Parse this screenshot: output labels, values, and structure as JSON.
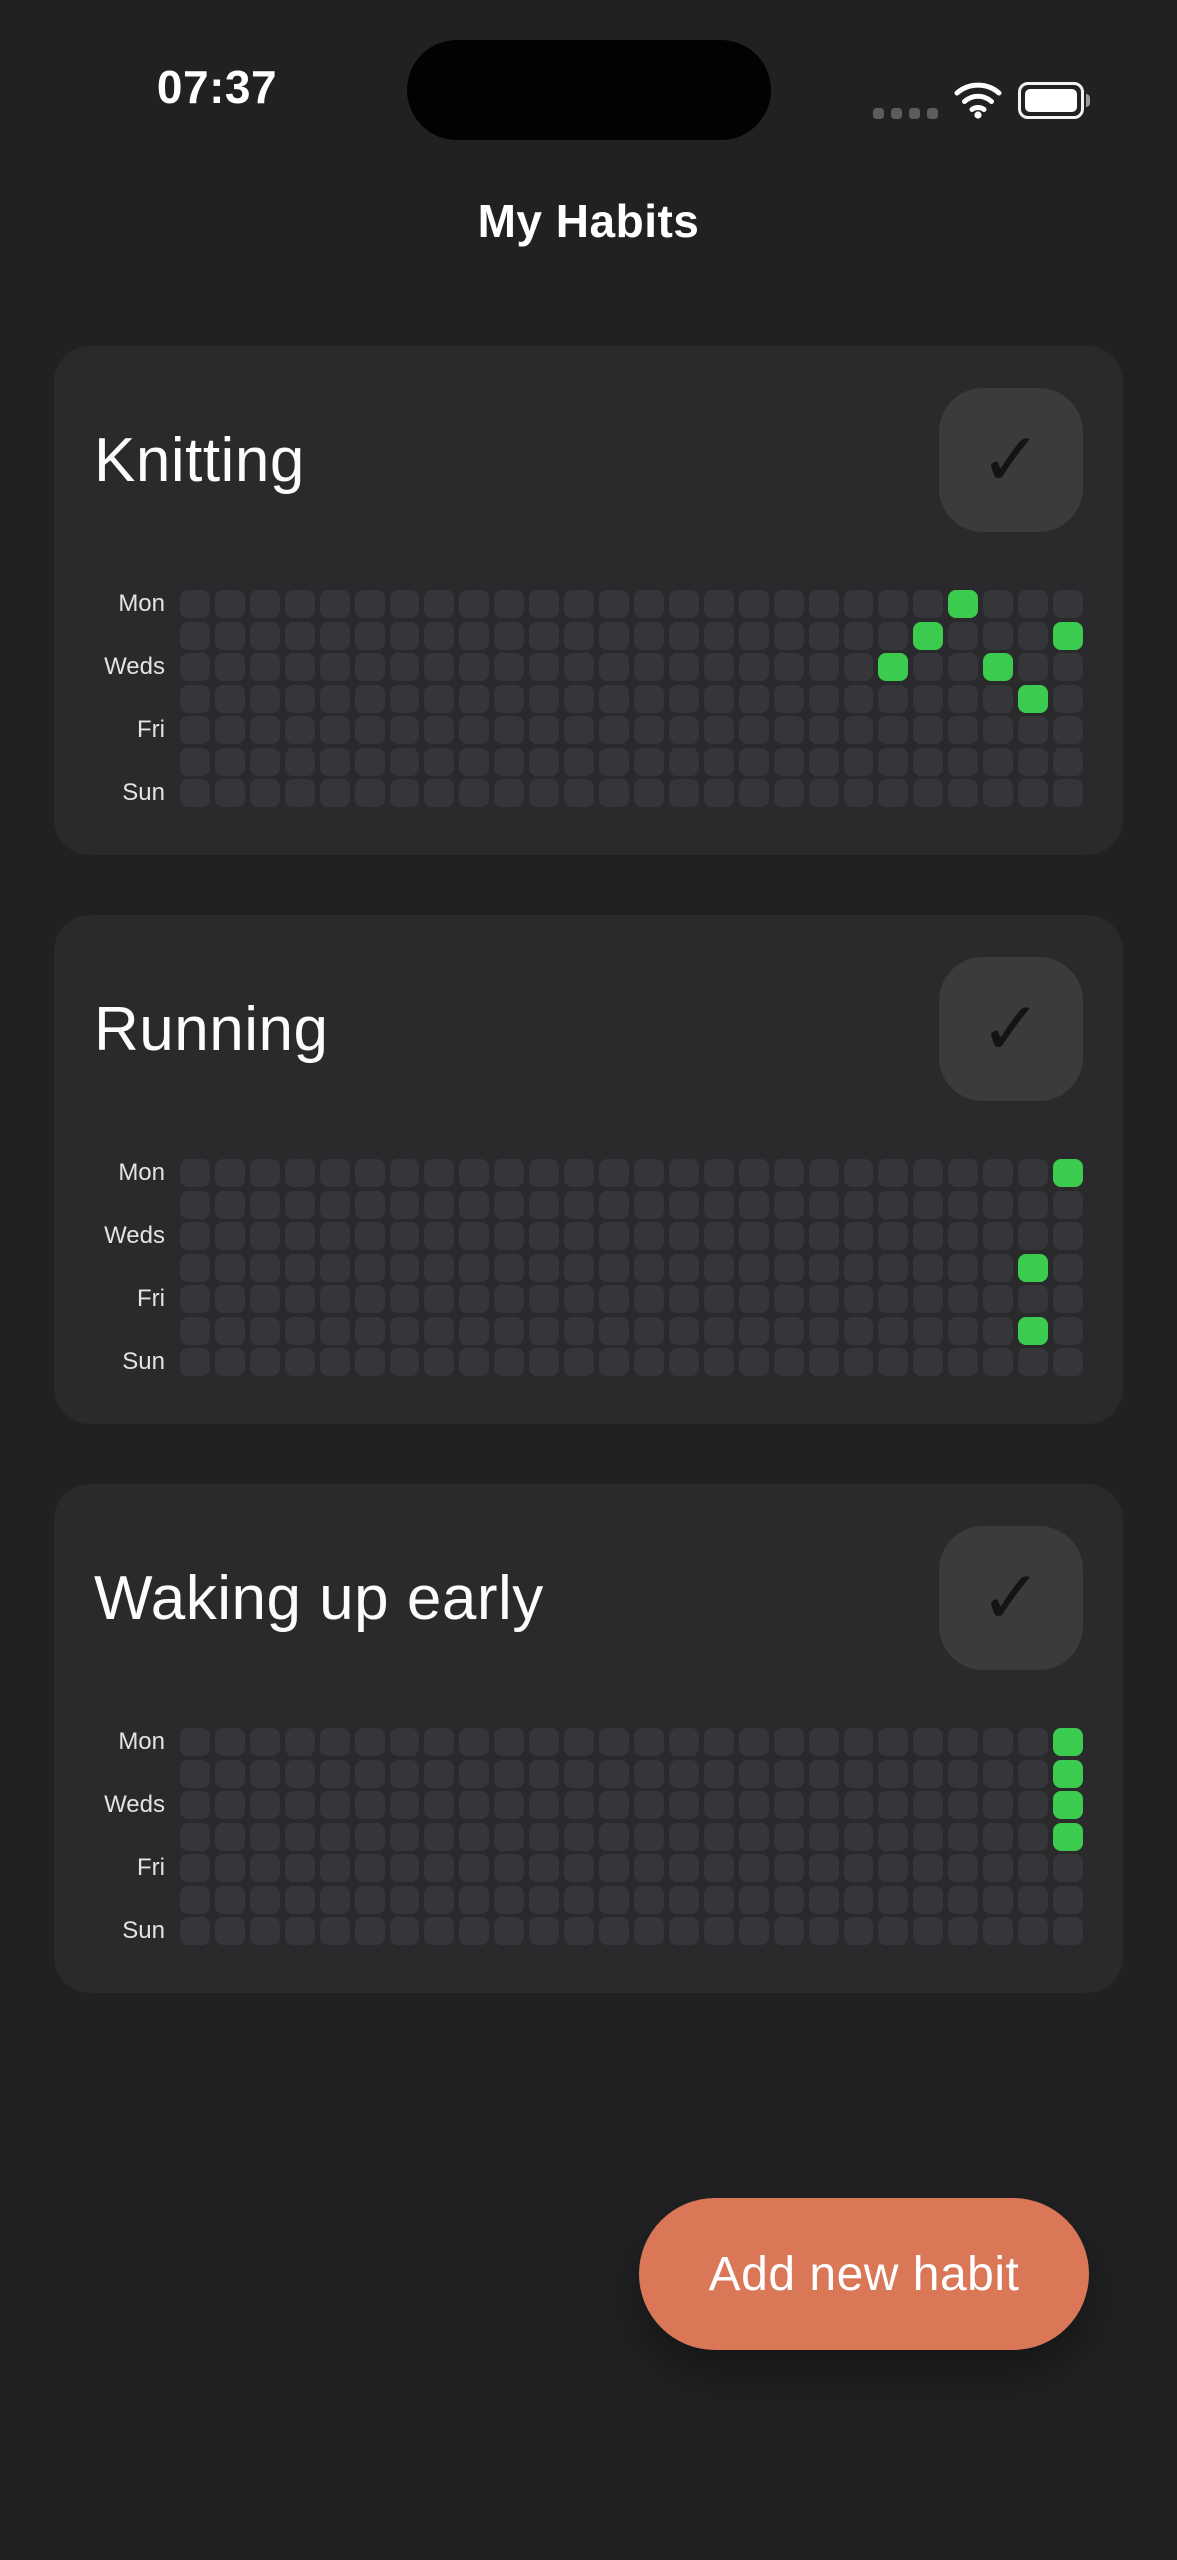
{
  "status_bar": {
    "time": "07:37",
    "icons": {
      "cellular": "signal-dots",
      "wifi": "wifi-arcs",
      "battery": "battery-full"
    }
  },
  "header": {
    "title": "My Habits"
  },
  "grid": {
    "rows": 7,
    "cols": 26,
    "day_labels": [
      "Mon",
      "",
      "Weds",
      "",
      "Fri",
      "",
      "Sun"
    ]
  },
  "habits": [
    {
      "name": "Knitting",
      "marked": [
        [
          2,
          20
        ],
        [
          1,
          21
        ],
        [
          0,
          22
        ],
        [
          2,
          23
        ],
        [
          3,
          24
        ],
        [
          1,
          25
        ]
      ]
    },
    {
      "name": "Running",
      "marked": [
        [
          0,
          25
        ],
        [
          3,
          24
        ],
        [
          5,
          24
        ]
      ]
    },
    {
      "name": "Waking up early",
      "marked": [
        [
          0,
          25
        ],
        [
          1,
          25
        ],
        [
          2,
          25
        ],
        [
          3,
          25
        ]
      ]
    }
  ],
  "check_button": {
    "glyph": "✓"
  },
  "add_button": {
    "label": "Add new habit"
  },
  "colors": {
    "background": "#212123",
    "card": "#2A2A2C",
    "cell": "#35363A",
    "cell_done": "#3ACB4F",
    "check_button": "#3B3B3E",
    "accent_coral": "#D97757"
  }
}
